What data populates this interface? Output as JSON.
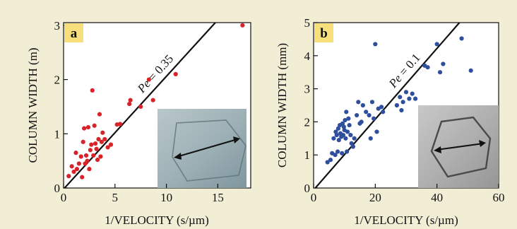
{
  "chart_data": [
    {
      "type": "scatter",
      "panel_label": "a",
      "xlabel": "1/VELOCITY (s/µm)",
      "ylabel": "COLUMN WIDTH (m)",
      "xlim": [
        0,
        18.2
      ],
      "ylim": [
        0,
        3.05
      ],
      "x_ticks": [
        0,
        5,
        10,
        15
      ],
      "y_ticks": [
        0,
        1,
        2,
        3
      ],
      "x_tick_labels": [
        "0",
        "5",
        "10",
        "15"
      ],
      "y_tick_labels": [
        "0",
        "1",
        "2",
        "3"
      ],
      "point_color": "#d9232a",
      "line": {
        "label": "Pe = 0.35",
        "label_prefix": "Pe",
        "label_suffix": " = 0.35",
        "slope": 0.208,
        "intercept": -0.02,
        "color": "#111111"
      },
      "inset": {
        "kind": "photo",
        "tone": "blue-gray",
        "content": "hexagonal cell with double-headed arrow"
      },
      "points": [
        [
          0.5,
          0.22
        ],
        [
          0.8,
          0.4
        ],
        [
          1.0,
          0.3
        ],
        [
          1.2,
          0.65
        ],
        [
          1.3,
          0.35
        ],
        [
          1.5,
          0.45
        ],
        [
          1.7,
          0.58
        ],
        [
          1.8,
          0.2
        ],
        [
          1.9,
          0.85
        ],
        [
          2.0,
          1.1
        ],
        [
          2.1,
          0.45
        ],
        [
          2.2,
          0.6
        ],
        [
          2.3,
          0.5
        ],
        [
          2.4,
          1.12
        ],
        [
          2.5,
          0.35
        ],
        [
          2.6,
          0.7
        ],
        [
          2.7,
          0.8
        ],
        [
          2.8,
          1.8
        ],
        [
          2.9,
          0.6
        ],
        [
          3.0,
          1.15
        ],
        [
          3.1,
          0.82
        ],
        [
          3.2,
          0.72
        ],
        [
          3.3,
          0.52
        ],
        [
          3.4,
          0.9
        ],
        [
          3.5,
          1.36
        ],
        [
          3.6,
          0.58
        ],
        [
          3.7,
          0.85
        ],
        [
          3.8,
          1.02
        ],
        [
          4.0,
          0.9
        ],
        [
          4.3,
          0.75
        ],
        [
          4.6,
          0.8
        ],
        [
          5.2,
          1.17
        ],
        [
          5.5,
          1.18
        ],
        [
          6.4,
          1.55
        ],
        [
          6.5,
          1.62
        ],
        [
          7.5,
          1.5
        ],
        [
          8.3,
          2.0
        ],
        [
          8.7,
          1.62
        ],
        [
          10.9,
          2.1
        ],
        [
          17.4,
          3.0
        ]
      ]
    },
    {
      "type": "scatter",
      "panel_label": "b",
      "xlabel": "1/VELOCITY (s/µm)",
      "ylabel": "COLUMN WIDTH (mm)",
      "xlim": [
        0,
        60
      ],
      "ylim": [
        0,
        5
      ],
      "x_ticks": [
        0,
        20,
        40,
        60
      ],
      "y_ticks": [
        0,
        1,
        2,
        3,
        4,
        5
      ],
      "x_tick_labels": [
        "0",
        "20",
        "40",
        "60"
      ],
      "y_tick_labels": [
        "0",
        "1",
        "2",
        "3",
        "4",
        "5"
      ],
      "point_color": "#2f4f9e",
      "line": {
        "label": "Pe = 0.1",
        "label_prefix": "Pe",
        "label_suffix": " = 0.1",
        "slope": 0.107,
        "intercept": -0.06,
        "color": "#111111"
      },
      "inset": {
        "kind": "photo",
        "tone": "gray",
        "content": "hexagonal cell with double-headed arrow"
      },
      "points": [
        [
          4.5,
          0.78
        ],
        [
          5.5,
          0.85
        ],
        [
          6.0,
          1.05
        ],
        [
          6.5,
          1.5
        ],
        [
          7.0,
          1.0
        ],
        [
          7.2,
          1.7
        ],
        [
          7.5,
          1.6
        ],
        [
          7.8,
          1.1
        ],
        [
          8.0,
          1.8
        ],
        [
          8.2,
          1.45
        ],
        [
          8.5,
          1.9
        ],
        [
          8.7,
          1.65
        ],
        [
          9.0,
          1.55
        ],
        [
          9.2,
          1.05
        ],
        [
          9.4,
          1.95
        ],
        [
          9.6,
          1.6
        ],
        [
          9.8,
          1.85
        ],
        [
          10.0,
          1.75
        ],
        [
          10.2,
          2.05
        ],
        [
          10.4,
          1.5
        ],
        [
          10.6,
          2.3
        ],
        [
          10.8,
          1.1
        ],
        [
          11.0,
          1.7
        ],
        [
          11.3,
          2.1
        ],
        [
          11.6,
          1.9
        ],
        [
          12.0,
          1.6
        ],
        [
          12.3,
          1.35
        ],
        [
          12.8,
          1.25
        ],
        [
          13.2,
          1.5
        ],
        [
          14.0,
          2.2
        ],
        [
          14.5,
          2.6
        ],
        [
          15.0,
          1.95
        ],
        [
          15.5,
          2.0
        ],
        [
          16.0,
          2.5
        ],
        [
          17.0,
          2.3
        ],
        [
          18.0,
          2.2
        ],
        [
          18.5,
          1.5
        ],
        [
          19.0,
          2.6
        ],
        [
          19.5,
          2.1
        ],
        [
          20.0,
          4.35
        ],
        [
          20.5,
          1.7
        ],
        [
          21.0,
          2.4
        ],
        [
          22.0,
          2.45
        ],
        [
          22.5,
          2.3
        ],
        [
          27.0,
          2.5
        ],
        [
          28.0,
          2.75
        ],
        [
          28.5,
          2.35
        ],
        [
          29.0,
          2.6
        ],
        [
          30.0,
          2.9
        ],
        [
          31.0,
          2.7
        ],
        [
          32.0,
          2.85
        ],
        [
          33.0,
          2.7
        ],
        [
          36.0,
          3.7
        ],
        [
          37.0,
          3.65
        ],
        [
          40.0,
          4.35
        ],
        [
          41.0,
          3.5
        ],
        [
          42.0,
          3.75
        ],
        [
          48.0,
          4.52
        ],
        [
          51.0,
          3.55
        ]
      ]
    }
  ]
}
